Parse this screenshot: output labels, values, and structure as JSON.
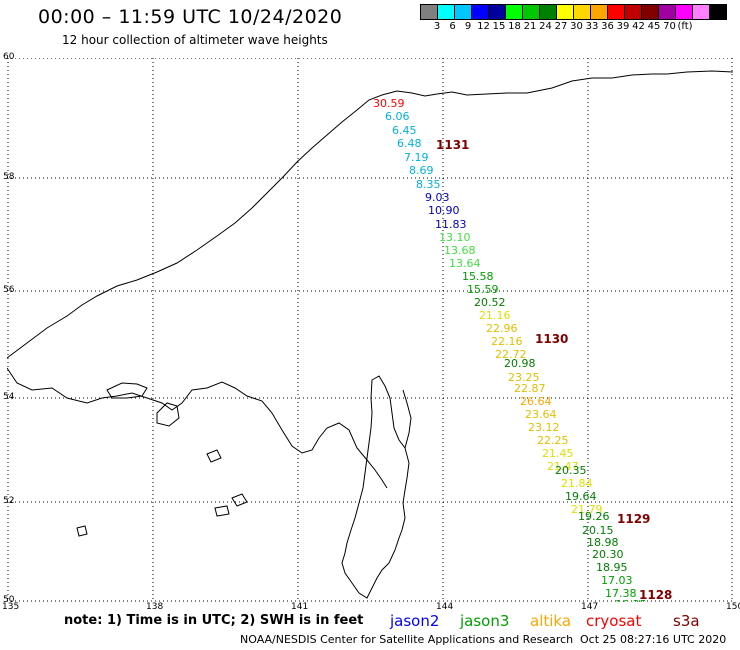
{
  "title": "00:00 – 11:59 UTC 10/24/2020",
  "subtitle": "12 hour collection of altimeter wave heights",
  "legend": {
    "colors": [
      "#808080",
      "#00ffff",
      "#00c8ff",
      "#0000ff",
      "#0000a0",
      "#00ff00",
      "#00c800",
      "#008000",
      "#ffff00",
      "#ffd700",
      "#ffa500",
      "#ff0000",
      "#c00000",
      "#800000",
      "#a000a0",
      "#ff00ff",
      "#ff80ff",
      "#000000"
    ],
    "labels": [
      "3",
      "6",
      "9",
      "12",
      "15",
      "18",
      "21",
      "24",
      "27",
      "30",
      "33",
      "36",
      "39",
      "42",
      "45",
      "70",
      "(ft)"
    ]
  },
  "axes": {
    "lat_labels": [
      "60",
      "58",
      "56",
      "54",
      "52",
      "50"
    ],
    "lon_labels": [
      "135",
      "138",
      "141",
      "144",
      "147",
      "150"
    ]
  },
  "satellites": [
    {
      "name": "jason2",
      "color": "#0000ff"
    },
    {
      "name": "jason3",
      "color": "#00a000"
    },
    {
      "name": "altika",
      "color": "#ffa500"
    },
    {
      "name": "cryosat",
      "color": "#ff0000"
    },
    {
      "name": "s3a",
      "color": "#800000"
    }
  ],
  "note": "note: 1) Time is in UTC; 2) SWH is in feet",
  "credit": "NOAA/NESDIS Center for Satellite Applications and Research",
  "timestamp": "Oct 25 08:27:16 UTC 2020",
  "track": {
    "wave_heights": [
      {
        "v": "30.59",
        "c": "#ff0000"
      },
      {
        "v": "6.06",
        "c": "#00b0e0"
      },
      {
        "v": "6.45",
        "c": "#00b0e0"
      },
      {
        "v": "6.48",
        "c": "#00b0e0"
      },
      {
        "v": "7.19",
        "c": "#00b0e0"
      },
      {
        "v": "8.69",
        "c": "#00b0e0"
      },
      {
        "v": "8.35",
        "c": "#00b0e0"
      },
      {
        "v": "9.03",
        "c": "#0000c0"
      },
      {
        "v": "10.90",
        "c": "#0000c0"
      },
      {
        "v": "11.83",
        "c": "#0000c0"
      },
      {
        "v": "13.10",
        "c": "#40e040"
      },
      {
        "v": "13.68",
        "c": "#40e040"
      },
      {
        "v": "13.64",
        "c": "#40e040"
      },
      {
        "v": "15.58",
        "c": "#00a000"
      },
      {
        "v": "15.59",
        "c": "#00a000"
      },
      {
        "v": "20.52",
        "c": "#008000"
      },
      {
        "v": "21.16",
        "c": "#e0e000"
      },
      {
        "v": "22.96",
        "c": "#e0c000"
      },
      {
        "v": "22.16",
        "c": "#e0c000"
      },
      {
        "v": "22.72",
        "c": "#e0c000"
      },
      {
        "v": "20.98",
        "c": "#008000"
      },
      {
        "v": "23.25",
        "c": "#e0c000"
      },
      {
        "v": "22.87",
        "c": "#e0c000"
      },
      {
        "v": "26.64",
        "c": "#ffa500"
      },
      {
        "v": "23.64",
        "c": "#e0c000"
      },
      {
        "v": "23.12",
        "c": "#e0c000"
      },
      {
        "v": "22.25",
        "c": "#e0c000"
      },
      {
        "v": "21.45",
        "c": "#e0e000"
      },
      {
        "v": "21.47",
        "c": "#e0e000"
      },
      {
        "v": "20.35",
        "c": "#008000"
      },
      {
        "v": "21.84",
        "c": "#e0e000"
      },
      {
        "v": "19.64",
        "c": "#008000"
      },
      {
        "v": "21.79",
        "c": "#e0e000"
      },
      {
        "v": "19.26",
        "c": "#008000"
      },
      {
        "v": "20.15",
        "c": "#008000"
      },
      {
        "v": "18.98",
        "c": "#008000"
      },
      {
        "v": "20.30",
        "c": "#008000"
      },
      {
        "v": "18.95",
        "c": "#008000"
      },
      {
        "v": "17.03",
        "c": "#00a000"
      },
      {
        "v": "17.38",
        "c": "#00a000"
      },
      {
        "v": "16.35",
        "c": "#00a000"
      }
    ],
    "times": [
      "1131",
      "1130",
      "1129",
      "1128"
    ]
  }
}
